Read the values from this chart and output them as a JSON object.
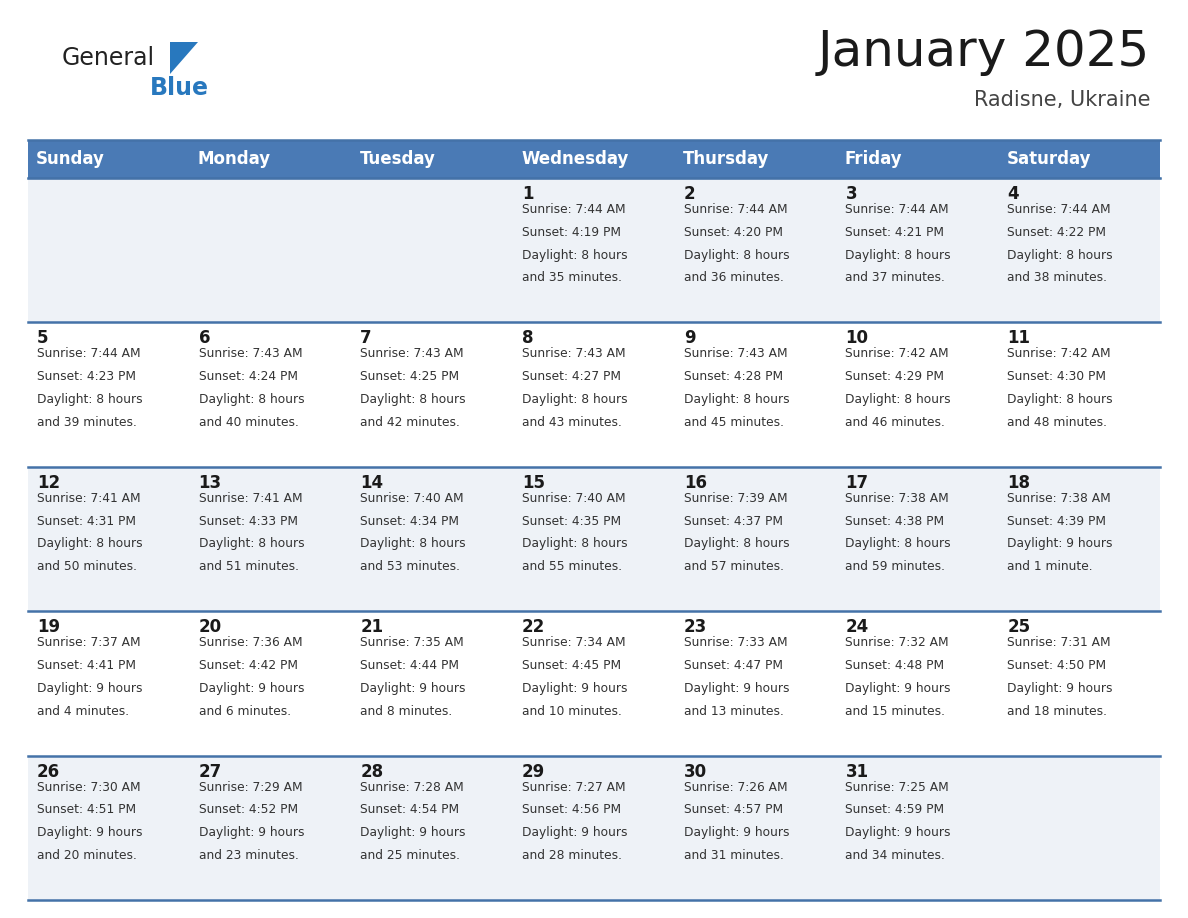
{
  "title": "January 2025",
  "subtitle": "Radisne, Ukraine",
  "header_color": "#4a7ab5",
  "header_text_color": "#ffffff",
  "day_names": [
    "Sunday",
    "Monday",
    "Tuesday",
    "Wednesday",
    "Thursday",
    "Friday",
    "Saturday"
  ],
  "bg_color": "#ffffff",
  "cell_bg_even": "#eef2f7",
  "cell_bg_odd": "#ffffff",
  "row_line_color": "#4472a8",
  "calendar_data": [
    [
      {
        "day": "",
        "sunrise": "",
        "sunset": "",
        "daylight": ""
      },
      {
        "day": "",
        "sunrise": "",
        "sunset": "",
        "daylight": ""
      },
      {
        "day": "",
        "sunrise": "",
        "sunset": "",
        "daylight": ""
      },
      {
        "day": "1",
        "sunrise": "7:44 AM",
        "sunset": "4:19 PM",
        "daylight_line1": "Daylight: 8 hours",
        "daylight_line2": "and 35 minutes."
      },
      {
        "day": "2",
        "sunrise": "7:44 AM",
        "sunset": "4:20 PM",
        "daylight_line1": "Daylight: 8 hours",
        "daylight_line2": "and 36 minutes."
      },
      {
        "day": "3",
        "sunrise": "7:44 AM",
        "sunset": "4:21 PM",
        "daylight_line1": "Daylight: 8 hours",
        "daylight_line2": "and 37 minutes."
      },
      {
        "day": "4",
        "sunrise": "7:44 AM",
        "sunset": "4:22 PM",
        "daylight_line1": "Daylight: 8 hours",
        "daylight_line2": "and 38 minutes."
      }
    ],
    [
      {
        "day": "5",
        "sunrise": "7:44 AM",
        "sunset": "4:23 PM",
        "daylight_line1": "Daylight: 8 hours",
        "daylight_line2": "and 39 minutes."
      },
      {
        "day": "6",
        "sunrise": "7:43 AM",
        "sunset": "4:24 PM",
        "daylight_line1": "Daylight: 8 hours",
        "daylight_line2": "and 40 minutes."
      },
      {
        "day": "7",
        "sunrise": "7:43 AM",
        "sunset": "4:25 PM",
        "daylight_line1": "Daylight: 8 hours",
        "daylight_line2": "and 42 minutes."
      },
      {
        "day": "8",
        "sunrise": "7:43 AM",
        "sunset": "4:27 PM",
        "daylight_line1": "Daylight: 8 hours",
        "daylight_line2": "and 43 minutes."
      },
      {
        "day": "9",
        "sunrise": "7:43 AM",
        "sunset": "4:28 PM",
        "daylight_line1": "Daylight: 8 hours",
        "daylight_line2": "and 45 minutes."
      },
      {
        "day": "10",
        "sunrise": "7:42 AM",
        "sunset": "4:29 PM",
        "daylight_line1": "Daylight: 8 hours",
        "daylight_line2": "and 46 minutes."
      },
      {
        "day": "11",
        "sunrise": "7:42 AM",
        "sunset": "4:30 PM",
        "daylight_line1": "Daylight: 8 hours",
        "daylight_line2": "and 48 minutes."
      }
    ],
    [
      {
        "day": "12",
        "sunrise": "7:41 AM",
        "sunset": "4:31 PM",
        "daylight_line1": "Daylight: 8 hours",
        "daylight_line2": "and 50 minutes."
      },
      {
        "day": "13",
        "sunrise": "7:41 AM",
        "sunset": "4:33 PM",
        "daylight_line1": "Daylight: 8 hours",
        "daylight_line2": "and 51 minutes."
      },
      {
        "day": "14",
        "sunrise": "7:40 AM",
        "sunset": "4:34 PM",
        "daylight_line1": "Daylight: 8 hours",
        "daylight_line2": "and 53 minutes."
      },
      {
        "day": "15",
        "sunrise": "7:40 AM",
        "sunset": "4:35 PM",
        "daylight_line1": "Daylight: 8 hours",
        "daylight_line2": "and 55 minutes."
      },
      {
        "day": "16",
        "sunrise": "7:39 AM",
        "sunset": "4:37 PM",
        "daylight_line1": "Daylight: 8 hours",
        "daylight_line2": "and 57 minutes."
      },
      {
        "day": "17",
        "sunrise": "7:38 AM",
        "sunset": "4:38 PM",
        "daylight_line1": "Daylight: 8 hours",
        "daylight_line2": "and 59 minutes."
      },
      {
        "day": "18",
        "sunrise": "7:38 AM",
        "sunset": "4:39 PM",
        "daylight_line1": "Daylight: 9 hours",
        "daylight_line2": "and 1 minute."
      }
    ],
    [
      {
        "day": "19",
        "sunrise": "7:37 AM",
        "sunset": "4:41 PM",
        "daylight_line1": "Daylight: 9 hours",
        "daylight_line2": "and 4 minutes."
      },
      {
        "day": "20",
        "sunrise": "7:36 AM",
        "sunset": "4:42 PM",
        "daylight_line1": "Daylight: 9 hours",
        "daylight_line2": "and 6 minutes."
      },
      {
        "day": "21",
        "sunrise": "7:35 AM",
        "sunset": "4:44 PM",
        "daylight_line1": "Daylight: 9 hours",
        "daylight_line2": "and 8 minutes."
      },
      {
        "day": "22",
        "sunrise": "7:34 AM",
        "sunset": "4:45 PM",
        "daylight_line1": "Daylight: 9 hours",
        "daylight_line2": "and 10 minutes."
      },
      {
        "day": "23",
        "sunrise": "7:33 AM",
        "sunset": "4:47 PM",
        "daylight_line1": "Daylight: 9 hours",
        "daylight_line2": "and 13 minutes."
      },
      {
        "day": "24",
        "sunrise": "7:32 AM",
        "sunset": "4:48 PM",
        "daylight_line1": "Daylight: 9 hours",
        "daylight_line2": "and 15 minutes."
      },
      {
        "day": "25",
        "sunrise": "7:31 AM",
        "sunset": "4:50 PM",
        "daylight_line1": "Daylight: 9 hours",
        "daylight_line2": "and 18 minutes."
      }
    ],
    [
      {
        "day": "26",
        "sunrise": "7:30 AM",
        "sunset": "4:51 PM",
        "daylight_line1": "Daylight: 9 hours",
        "daylight_line2": "and 20 minutes."
      },
      {
        "day": "27",
        "sunrise": "7:29 AM",
        "sunset": "4:52 PM",
        "daylight_line1": "Daylight: 9 hours",
        "daylight_line2": "and 23 minutes."
      },
      {
        "day": "28",
        "sunrise": "7:28 AM",
        "sunset": "4:54 PM",
        "daylight_line1": "Daylight: 9 hours",
        "daylight_line2": "and 25 minutes."
      },
      {
        "day": "29",
        "sunrise": "7:27 AM",
        "sunset": "4:56 PM",
        "daylight_line1": "Daylight: 9 hours",
        "daylight_line2": "and 28 minutes."
      },
      {
        "day": "30",
        "sunrise": "7:26 AM",
        "sunset": "4:57 PM",
        "daylight_line1": "Daylight: 9 hours",
        "daylight_line2": "and 31 minutes."
      },
      {
        "day": "31",
        "sunrise": "7:25 AM",
        "sunset": "4:59 PM",
        "daylight_line1": "Daylight: 9 hours",
        "daylight_line2": "and 34 minutes."
      },
      {
        "day": "",
        "sunrise": "",
        "sunset": "",
        "daylight_line1": "",
        "daylight_line2": ""
      }
    ]
  ],
  "logo_general_color": "#222222",
  "logo_blue_color": "#2878be",
  "title_fontsize": 36,
  "subtitle_fontsize": 15,
  "header_fontsize": 12,
  "day_num_fontsize": 12,
  "cell_text_fontsize": 8.8
}
